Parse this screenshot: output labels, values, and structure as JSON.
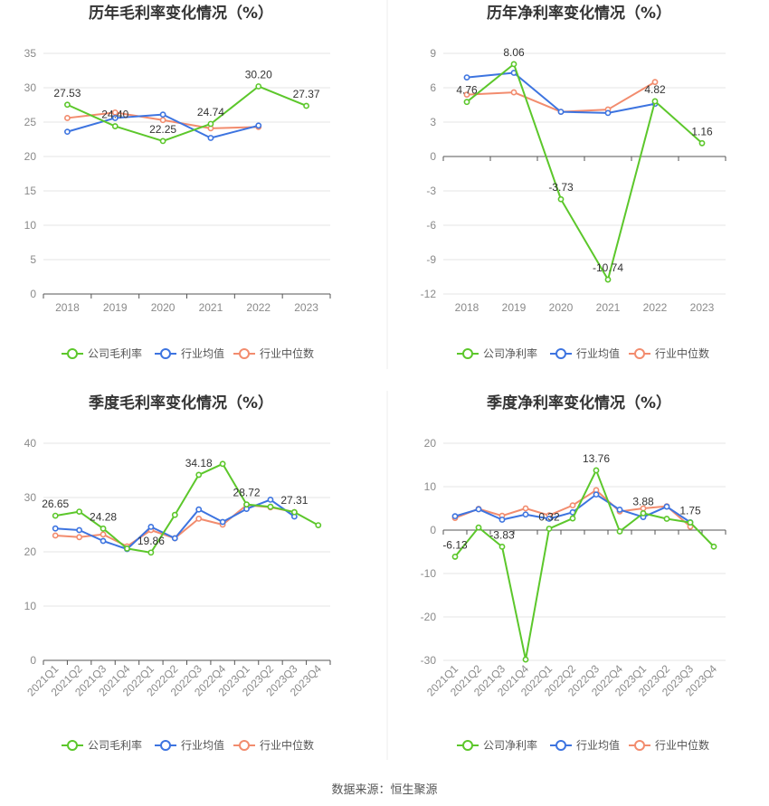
{
  "colors": {
    "company": "#5cc72b",
    "industry_avg": "#3d74e0",
    "industry_median": "#f28c6e",
    "grid": "#e6e6e6",
    "axis": "#555555"
  },
  "legend": {
    "company_gross": "公司毛利率",
    "company_net": "公司净利率",
    "industry_avg": "行业均值",
    "industry_median": "行业中位数"
  },
  "source": "数据来源：恒生聚源",
  "chart_data": [
    {
      "type": "line",
      "title": "历年毛利率变化情况（%）",
      "categories": [
        "2018",
        "2019",
        "2020",
        "2021",
        "2022",
        "2023"
      ],
      "ylim": [
        0,
        35
      ],
      "yticks": [
        "0",
        "5",
        "10",
        "15",
        "20",
        "25",
        "30",
        "35"
      ],
      "series": [
        {
          "name": "公司毛利率",
          "role": "company",
          "values": [
            27.53,
            24.4,
            22.25,
            24.74,
            30.2,
            27.37
          ]
        },
        {
          "name": "行业均值",
          "role": "industry_avg",
          "values": [
            23.6,
            25.6,
            26.1,
            22.7,
            24.5,
            null
          ]
        },
        {
          "name": "行业中位数",
          "role": "industry_median",
          "values": [
            25.6,
            26.4,
            25.3,
            24.1,
            24.3,
            null
          ]
        }
      ],
      "labels": [
        {
          "i": 0,
          "text": "27.53"
        },
        {
          "i": 1,
          "text": "24.40"
        },
        {
          "i": 2,
          "text": "22.25"
        },
        {
          "i": 3,
          "text": "24.74"
        },
        {
          "i": 4,
          "text": "30.20"
        },
        {
          "i": 5,
          "text": "27.37"
        }
      ]
    },
    {
      "type": "line",
      "title": "历年净利率变化情况（%）",
      "categories": [
        "2018",
        "2019",
        "2020",
        "2021",
        "2022",
        "2023"
      ],
      "ylim": [
        -12,
        9
      ],
      "yticks": [
        "-12",
        "-9",
        "-6",
        "-3",
        "0",
        "3",
        "6",
        "9"
      ],
      "series": [
        {
          "name": "公司净利率",
          "role": "company",
          "values": [
            4.76,
            8.06,
            -3.73,
            -10.74,
            4.82,
            1.16
          ]
        },
        {
          "name": "行业均值",
          "role": "industry_avg",
          "values": [
            6.9,
            7.3,
            3.9,
            3.8,
            4.6,
            null
          ]
        },
        {
          "name": "行业中位数",
          "role": "industry_median",
          "values": [
            5.4,
            5.6,
            3.9,
            4.1,
            6.5,
            null
          ]
        }
      ],
      "labels": [
        {
          "i": 0,
          "text": "4.76"
        },
        {
          "i": 1,
          "text": "8.06"
        },
        {
          "i": 2,
          "text": "-3.73"
        },
        {
          "i": 3,
          "text": "-10.74"
        },
        {
          "i": 4,
          "text": "4.82"
        },
        {
          "i": 5,
          "text": "1.16"
        }
      ]
    },
    {
      "type": "line",
      "title": "季度毛利率变化情况（%）",
      "categories": [
        "2021Q1",
        "2021Q2",
        "2021Q3",
        "2021Q4",
        "2022Q1",
        "2022Q2",
        "2022Q3",
        "2022Q4",
        "2023Q1",
        "2023Q2",
        "2023Q3",
        "2023Q4"
      ],
      "ylim": [
        0,
        40
      ],
      "yticks": [
        "0",
        "10",
        "20",
        "30",
        "40"
      ],
      "series": [
        {
          "name": "公司毛利率",
          "role": "company",
          "values": [
            26.65,
            27.4,
            24.28,
            20.6,
            19.86,
            26.8,
            34.18,
            36.2,
            28.72,
            28.3,
            27.31,
            24.9
          ]
        },
        {
          "name": "行业均值",
          "role": "industry_avg",
          "values": [
            24.3,
            24.0,
            22.0,
            20.5,
            24.6,
            22.5,
            27.8,
            25.5,
            27.9,
            29.6,
            26.5,
            null
          ]
        },
        {
          "name": "行业中位数",
          "role": "industry_median",
          "values": [
            23.0,
            22.7,
            23.2,
            21.0,
            24.0,
            22.5,
            26.1,
            25.0,
            28.6,
            28.2,
            27.3,
            null
          ]
        }
      ],
      "labels": [
        {
          "i": 0,
          "text": "26.65"
        },
        {
          "i": 2,
          "text": "24.28"
        },
        {
          "i": 4,
          "text": "19.86"
        },
        {
          "i": 6,
          "text": "34.18"
        },
        {
          "i": 8,
          "text": "28.72"
        },
        {
          "i": 10,
          "text": "27.31"
        }
      ]
    },
    {
      "type": "line",
      "title": "季度净利率变化情况（%）",
      "categories": [
        "2021Q1",
        "2021Q2",
        "2021Q3",
        "2021Q4",
        "2022Q1",
        "2022Q2",
        "2022Q3",
        "2022Q4",
        "2023Q1",
        "2023Q2",
        "2023Q3",
        "2023Q4"
      ],
      "ylim": [
        -30,
        20
      ],
      "yticks": [
        "-30",
        "-20",
        "-10",
        "0",
        "10",
        "20"
      ],
      "series": [
        {
          "name": "公司净利率",
          "role": "company",
          "values": [
            -6.13,
            0.6,
            -3.83,
            -29.8,
            0.32,
            2.7,
            13.76,
            -0.3,
            3.88,
            2.6,
            1.75,
            -3.8
          ]
        },
        {
          "name": "行业均值",
          "role": "industry_avg",
          "values": [
            3.2,
            4.8,
            2.4,
            3.6,
            2.6,
            4.1,
            8.2,
            4.7,
            3.0,
            5.4,
            1.8,
            null
          ]
        },
        {
          "name": "行业中位数",
          "role": "industry_median",
          "values": [
            2.8,
            4.9,
            3.3,
            5.0,
            3.4,
            5.7,
            9.2,
            4.3,
            5.0,
            5.5,
            0.8,
            null
          ]
        }
      ],
      "labels": [
        {
          "i": 0,
          "text": "-6.13"
        },
        {
          "i": 2,
          "text": "-3.83"
        },
        {
          "i": 4,
          "text": "0.32"
        },
        {
          "i": 6,
          "text": "13.76"
        },
        {
          "i": 8,
          "text": "3.88"
        },
        {
          "i": 10,
          "text": "1.75"
        }
      ]
    }
  ]
}
